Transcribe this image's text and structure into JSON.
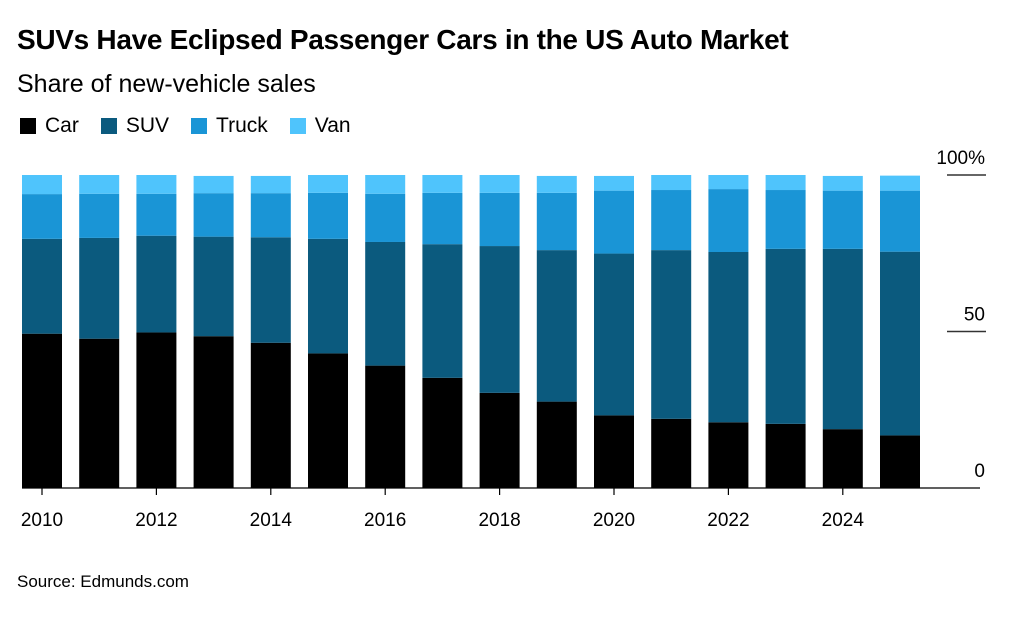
{
  "header": {
    "title": "SUVs Have Eclipsed Passenger Cars in the US Auto Market",
    "subtitle": "Share of new-vehicle sales"
  },
  "legend": [
    {
      "label": "Car",
      "color": "#000000"
    },
    {
      "label": "SUV",
      "color": "#0b5a7e"
    },
    {
      "label": "Truck",
      "color": "#1a95d6"
    },
    {
      "label": "Van",
      "color": "#4fc4fc"
    }
  ],
  "footer": {
    "source": "Source: Edmunds.com"
  },
  "chart_data": {
    "type": "bar",
    "stacked": true,
    "title": "SUVs Have Eclipsed Passenger Cars in the US Auto Market",
    "subtitle": "Share of new-vehicle sales",
    "xlabel": "",
    "ylabel": "",
    "ylim": [
      0,
      100
    ],
    "y_ticks": [
      "0",
      "50",
      "100%"
    ],
    "y_tick_values": [
      0,
      50,
      100
    ],
    "y_axis_side": "right",
    "x_tick_labels": [
      "2010",
      "2012",
      "2014",
      "2016",
      "2018",
      "2020",
      "2022",
      "2024"
    ],
    "legend_position": "top-left",
    "grid": false,
    "categories": [
      "2010",
      "2011",
      "2012",
      "2013",
      "2014",
      "2015",
      "2016",
      "2017",
      "2018",
      "2019",
      "2020",
      "2021",
      "2022",
      "2023",
      "2024",
      "2025"
    ],
    "series": [
      {
        "name": "Car",
        "color": "#000000",
        "values": [
          49.3,
          47.7,
          49.7,
          48.5,
          46.4,
          43.0,
          39.1,
          35.2,
          30.4,
          27.6,
          23.2,
          22.1,
          21.0,
          20.5,
          18.8,
          16.8
        ]
      },
      {
        "name": "SUV",
        "color": "#0b5a7e",
        "values": [
          30.3,
          32.2,
          30.9,
          31.8,
          33.7,
          36.6,
          39.5,
          42.7,
          46.9,
          48.4,
          51.7,
          53.9,
          54.4,
          55.9,
          57.6,
          58.7
        ]
      },
      {
        "name": "Truck",
        "color": "#1a95d6",
        "values": [
          14.3,
          14.1,
          13.4,
          13.9,
          14.1,
          14.7,
          15.4,
          16.4,
          17.0,
          18.3,
          20.1,
          19.2,
          20.1,
          18.8,
          18.6,
          19.5
        ]
      },
      {
        "name": "Van",
        "color": "#4fc4fc",
        "values": [
          6.1,
          6.0,
          6.0,
          5.5,
          5.5,
          5.7,
          6.0,
          5.7,
          5.7,
          5.4,
          4.7,
          4.8,
          4.5,
          4.8,
          4.7,
          4.8
        ]
      }
    ],
    "source": "Source: Edmunds.com"
  }
}
